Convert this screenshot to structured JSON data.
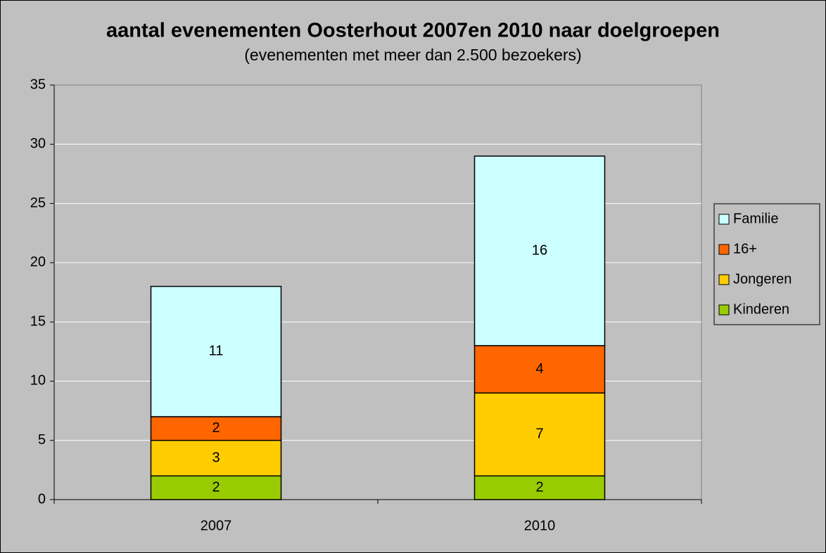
{
  "chart_data": {
    "type": "stacked_bar",
    "title": "aantal evenementen Oosterhout 2007en 2010 naar doelgroepen",
    "subtitle": "(evenementen met meer dan 2.500 bezoekers)",
    "categories": [
      "2007",
      "2010"
    ],
    "series": [
      {
        "name": "Kinderen",
        "color": "#99cc00",
        "values": [
          2,
          2
        ]
      },
      {
        "name": "Jongeren",
        "color": "#ffcc00",
        "values": [
          3,
          7
        ]
      },
      {
        "name": "16+",
        "color": "#ff6600",
        "values": [
          2,
          4
        ]
      },
      {
        "name": "Familie",
        "color": "#ccffff",
        "values": [
          11,
          16
        ]
      }
    ],
    "ylim": [
      0,
      35
    ],
    "yticks": [
      0,
      5,
      10,
      15,
      20,
      25,
      30,
      35
    ],
    "grid": true,
    "legend": "right"
  }
}
